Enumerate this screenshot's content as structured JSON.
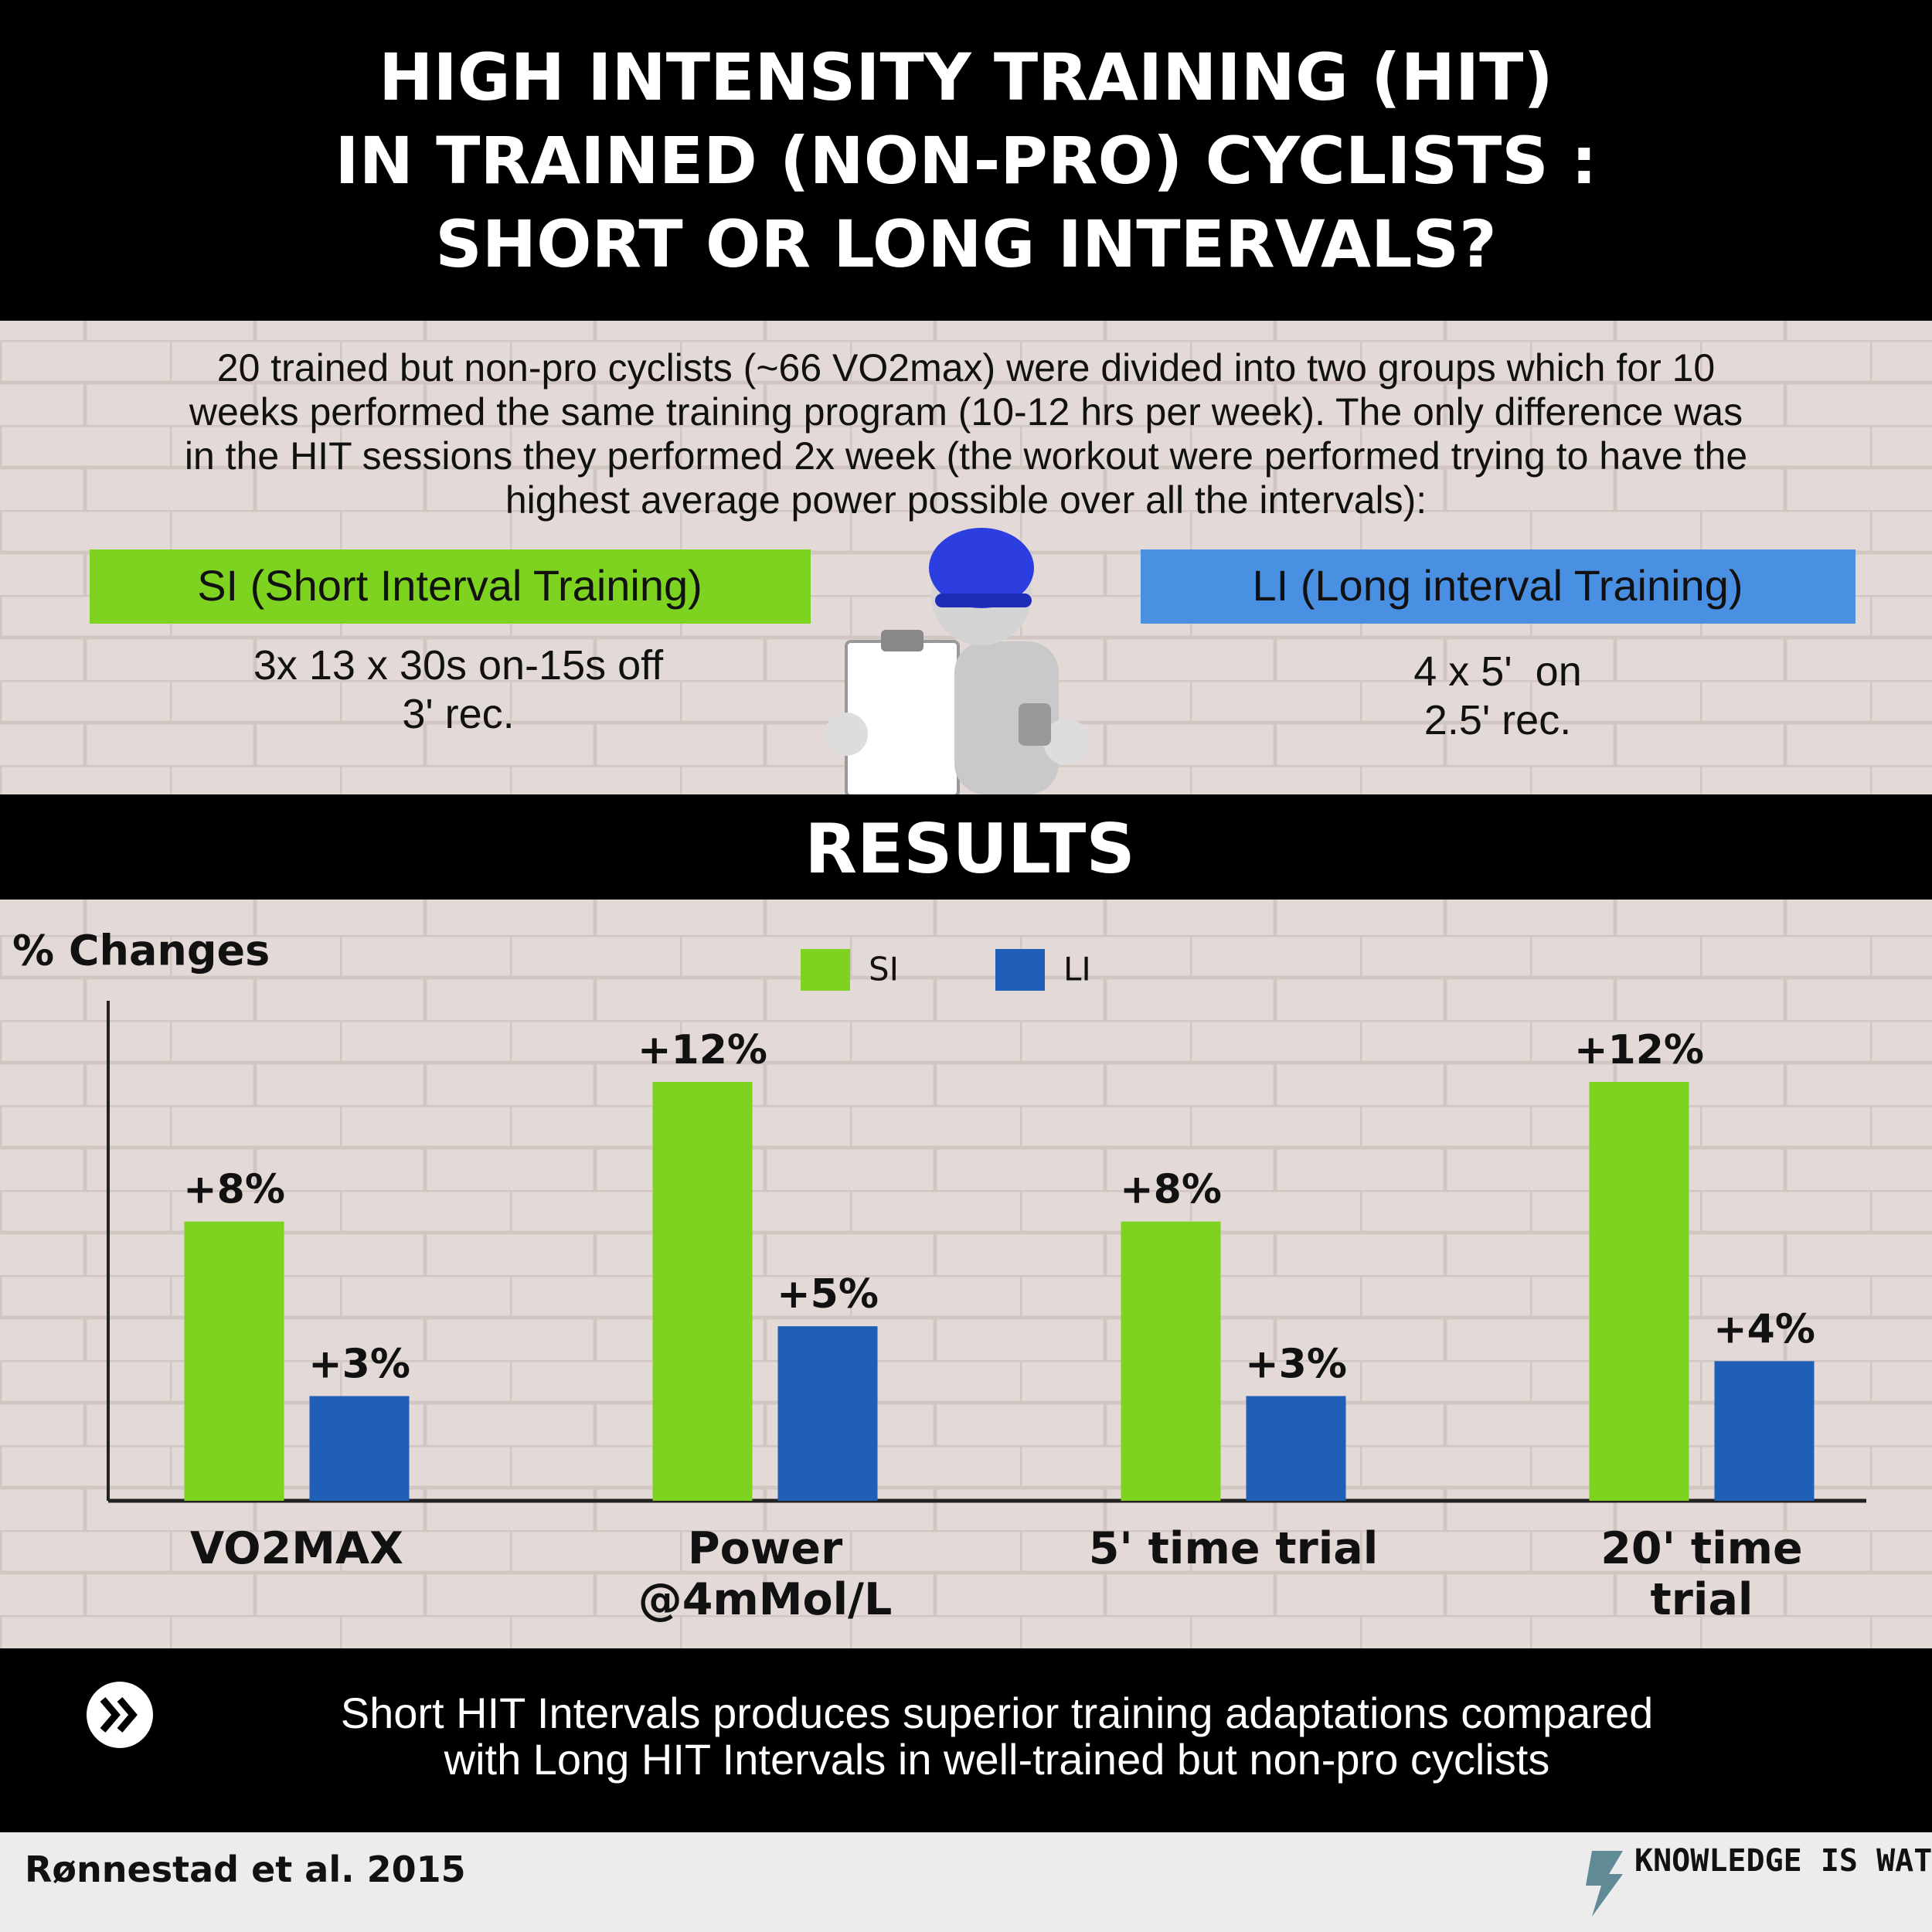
{
  "header": {
    "title": [
      "HIGH INTENSITY TRAINING (HIT)",
      "IN TRAINED (NON-PRO) CYCLISTS :",
      "SHORT OR LONG INTERVALS?"
    ]
  },
  "intro": {
    "lines": [
      "20 trained but non-pro cyclists (~66 VO2max) were divided into two groups which for 10",
      "weeks performed the same training program (10-12 hrs per week). The only difference was",
      "in the HIT sessions they performed 2x week (the workout were performed trying to have the",
      "highest average power possible over all the intervals):"
    ]
  },
  "groups": [
    {
      "name": "SI (Short Interval Training)",
      "protocol": [
        "3x 13 x 30s on-15s off",
        "3' rec."
      ]
    },
    {
      "name": "LI (Long interval Training)",
      "protocol": [
        "4 x 5'  on",
        "2.5' rec."
      ]
    }
  ],
  "results_title": "RESULTS",
  "chart_data": {
    "type": "bar",
    "y_label": "% Changes",
    "categories": [
      "VO2MAX",
      "Power\n@4mMol/L",
      "5' time trial",
      "20' time trial"
    ],
    "series": [
      {
        "name": "SI",
        "color": "#7ed321",
        "values": [
          8,
          12,
          8,
          12
        ],
        "value_labels": [
          "+8%",
          "+12%",
          "+8%",
          "+12%"
        ]
      },
      {
        "name": "LI",
        "color": "#1f5fb8",
        "values": [
          3,
          5,
          3,
          4
        ],
        "value_labels": [
          "+3%",
          "+5%",
          "+3%",
          "+4%"
        ]
      }
    ],
    "ylim": [
      0,
      12
    ]
  },
  "conclusion": [
    "Short HIT Intervals produces superior training adaptations compared",
    "with Long HIT Intervals in well-trained but non-pro cyclists"
  ],
  "footer": {
    "citation": "Rønnestad et al. 2015",
    "brand": "KNOWLEDGE IS WATT"
  }
}
